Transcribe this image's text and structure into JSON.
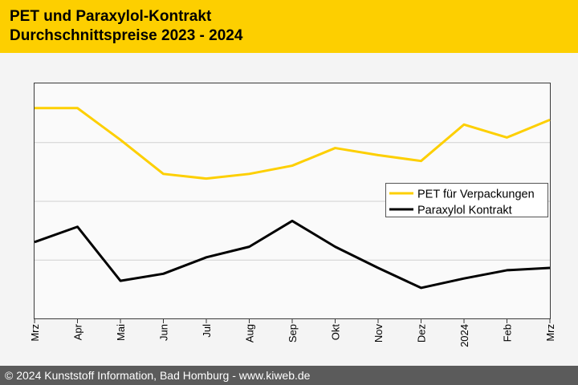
{
  "header": {
    "title_line1": "PET und Paraxylol-Kontrakt",
    "title_line2": "Durchschnittspreise 2023 - 2024",
    "background_color": "#fdcf00"
  },
  "footer": {
    "text": "© 2024 Kunststoff Information, Bad Homburg - www.kiweb.de",
    "background_color": "#5b5b5b"
  },
  "chart_data": {
    "type": "line",
    "title": "PET und Paraxylol-Kontrakt Durchschnittspreise 2023 - 2024",
    "categories": [
      "Mrz",
      "Apr",
      "Mai",
      "Jun",
      "Jul",
      "Aug",
      "Sep",
      "Okt",
      "Nov",
      "Dez",
      "2024",
      "Feb",
      "Mrz"
    ],
    "ylim": [
      0,
      100
    ],
    "y_gridlines": [
      25,
      50,
      75
    ],
    "y_tick_labels": false,
    "legend_position": "right",
    "series": [
      {
        "name": "PET für Verpackungen",
        "color": "#fdcf00",
        "values": [
          89.5,
          89.5,
          76.0,
          61.5,
          59.5,
          61.5,
          65.0,
          72.5,
          69.5,
          67.0,
          82.5,
          77.0,
          84.5
        ]
      },
      {
        "name": "Paraxylol Kontrakt",
        "color": "#000000",
        "values": [
          32.5,
          39.0,
          16.0,
          19.0,
          26.0,
          30.5,
          41.5,
          30.5,
          21.5,
          13.0,
          17.0,
          20.5,
          21.5
        ]
      }
    ]
  }
}
